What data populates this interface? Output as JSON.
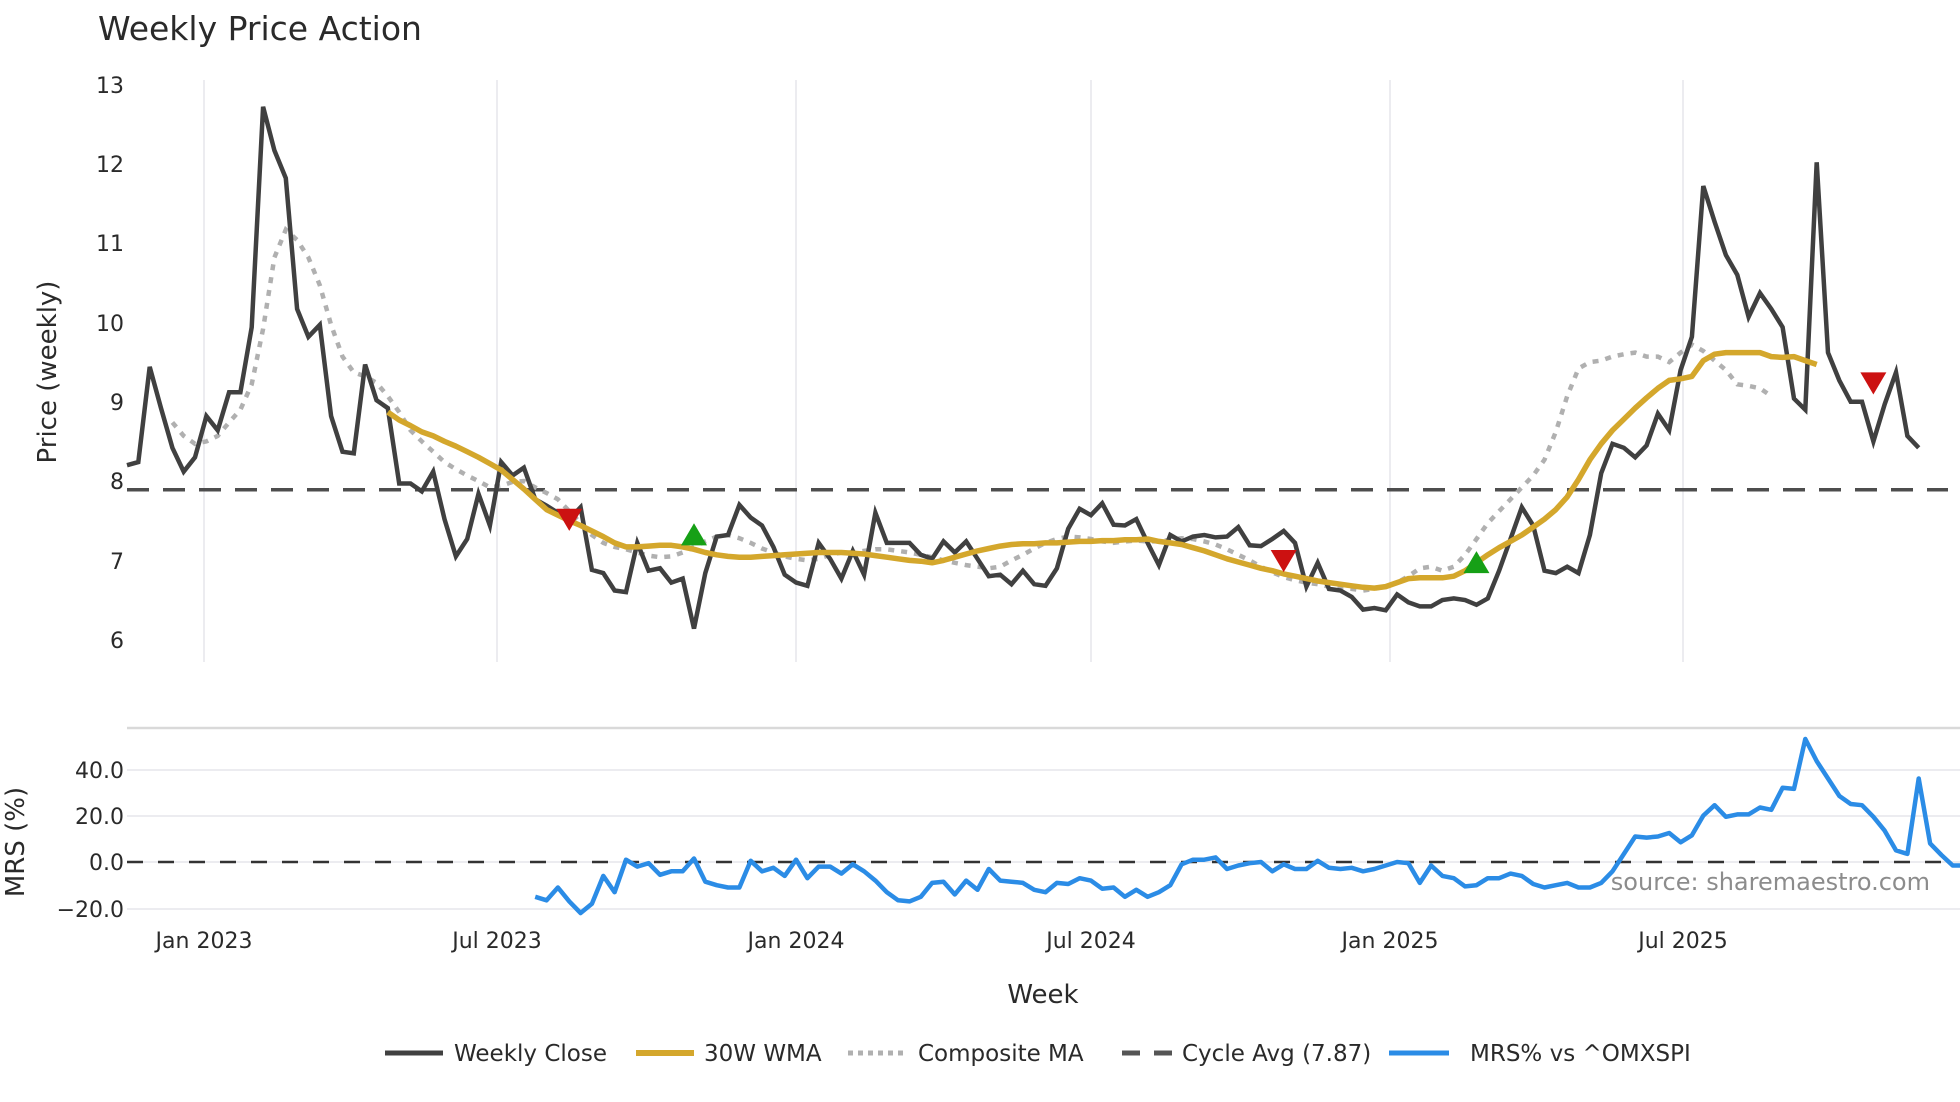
{
  "chart_data": {
    "type": "line",
    "title": "Weekly Price Action",
    "xlabel": "Week",
    "panels": [
      {
        "name": "price",
        "ylabel": "Price (weekly)",
        "ylim": [
          5.7,
          13.2
        ],
        "yticks": [
          6,
          7,
          8,
          9,
          10,
          11,
          12,
          13
        ],
        "grid": "vertical"
      },
      {
        "name": "mrs",
        "ylabel": "MRS (%)",
        "ylim": [
          -25,
          60
        ],
        "yticks": [
          "−20.0",
          "0.0",
          "20.0",
          "40.0"
        ],
        "ytick_values": [
          -20,
          0,
          20,
          40
        ],
        "grid": "horizontal"
      }
    ],
    "x_ticks": [
      "Jan 2023",
      "Jul 2023",
      "Jan 2024",
      "Jul 2024",
      "Jan 2025",
      "Jul 2025"
    ],
    "x_start": "2022-10-24",
    "x_freq": "weekly",
    "legend_position": "bottom",
    "cycle_avg": 7.87,
    "series": [
      {
        "name": "Weekly Close",
        "color": "#404040",
        "start_index": 0,
        "values": [
          8.18,
          8.22,
          9.42,
          8.9,
          8.4,
          8.1,
          8.28,
          8.8,
          8.62,
          9.1,
          9.1,
          9.92,
          12.7,
          12.15,
          11.8,
          10.15,
          9.8,
          9.95,
          8.8,
          8.35,
          8.33,
          9.45,
          9.0,
          8.9,
          7.95,
          7.95,
          7.85,
          8.1,
          7.5,
          7.03,
          7.25,
          7.82,
          7.42,
          8.22,
          8.05,
          8.15,
          7.75,
          7.67,
          7.58,
          7.5,
          7.65,
          6.86,
          6.82,
          6.6,
          6.58,
          7.2,
          6.85,
          6.88,
          6.7,
          6.75,
          6.12,
          6.82,
          7.28,
          7.3,
          7.68,
          7.52,
          7.42,
          7.15,
          6.8,
          6.7,
          6.66,
          7.2,
          7.0,
          6.75,
          7.1,
          6.8,
          7.58,
          7.2,
          7.2,
          7.2,
          7.05,
          7.0,
          7.22,
          7.08,
          7.22,
          7.0,
          6.78,
          6.8,
          6.68,
          6.85,
          6.68,
          6.66,
          6.88,
          7.38,
          7.63,
          7.55,
          7.7,
          7.43,
          7.42,
          7.5,
          7.2,
          6.92,
          7.3,
          7.22,
          7.28,
          7.3,
          7.27,
          7.28,
          7.4,
          7.17,
          7.16,
          7.25,
          7.35,
          7.2,
          6.65,
          6.95,
          6.62,
          6.6,
          6.52,
          6.36,
          6.38,
          6.35,
          6.55,
          6.45,
          6.4,
          6.4,
          6.48,
          6.5,
          6.48,
          6.42,
          6.5,
          6.85,
          7.25,
          7.65,
          7.42,
          6.85,
          6.82,
          6.9,
          6.82,
          7.3,
          8.08,
          8.45,
          8.4,
          8.28,
          8.43,
          8.83,
          8.62,
          9.38,
          9.8,
          11.7,
          11.25,
          10.83,
          10.58,
          10.05,
          10.35,
          10.15,
          9.92,
          9.02,
          8.88,
          12.0,
          9.6,
          9.25,
          8.98,
          8.98,
          8.48,
          8.95,
          9.35,
          8.55,
          8.4
        ]
      },
      {
        "name": "30W WMA",
        "color": "#D4A72C",
        "start_index": 23,
        "values": [
          8.85,
          8.75,
          8.68,
          8.6,
          8.55,
          8.48,
          8.42,
          8.35,
          8.28,
          8.2,
          8.12,
          8.0,
          7.88,
          7.75,
          7.62,
          7.55,
          7.48,
          7.42,
          7.35,
          7.28,
          7.2,
          7.15,
          7.15,
          7.16,
          7.17,
          7.17,
          7.15,
          7.12,
          7.08,
          7.05,
          7.03,
          7.02,
          7.02,
          7.03,
          7.04,
          7.05,
          7.06,
          7.07,
          7.08,
          7.08,
          7.08,
          7.07,
          7.06,
          7.04,
          7.02,
          7.0,
          6.98,
          6.97,
          6.95,
          6.98,
          7.02,
          7.06,
          7.1,
          7.13,
          7.16,
          7.18,
          7.19,
          7.19,
          7.2,
          7.2,
          7.21,
          7.22,
          7.22,
          7.23,
          7.23,
          7.24,
          7.24,
          7.25,
          7.22,
          7.2,
          7.18,
          7.14,
          7.1,
          7.05,
          7.0,
          6.96,
          6.92,
          6.88,
          6.85,
          6.81,
          6.78,
          6.75,
          6.72,
          6.7,
          6.68,
          6.66,
          6.64,
          6.63,
          6.65,
          6.7,
          6.75,
          6.76,
          6.76,
          6.76,
          6.78,
          6.85,
          6.95,
          7.05,
          7.14,
          7.22,
          7.3,
          7.4,
          7.5,
          7.62,
          7.78,
          8.0,
          8.25,
          8.45,
          8.62,
          8.76,
          8.9,
          9.03,
          9.15,
          9.25,
          9.27,
          9.3,
          9.5,
          9.58,
          9.6,
          9.6,
          9.6,
          9.6,
          9.55,
          9.54,
          9.55,
          9.5,
          9.45
        ]
      },
      {
        "name": "Composite MA",
        "color": "#b0b0b0",
        "start_index": 4,
        "values": [
          8.72,
          8.55,
          8.45,
          8.48,
          8.55,
          8.72,
          8.88,
          9.2,
          9.9,
          10.8,
          11.15,
          11.02,
          10.8,
          10.45,
          9.95,
          9.55,
          9.35,
          9.3,
          9.22,
          9.05,
          8.85,
          8.62,
          8.48,
          8.35,
          8.22,
          8.13,
          8.05,
          7.98,
          7.9,
          7.92,
          7.97,
          7.98,
          7.9,
          7.83,
          7.75,
          7.6,
          7.45,
          7.3,
          7.2,
          7.15,
          7.12,
          7.08,
          7.04,
          7.02,
          7.03,
          7.08,
          7.15,
          7.22,
          7.28,
          7.3,
          7.26,
          7.2,
          7.13,
          7.08,
          7.03,
          7.0,
          6.98,
          7.0,
          7.05,
          7.08,
          7.08,
          7.1,
          7.12,
          7.12,
          7.1,
          7.08,
          7.05,
          7.02,
          6.98,
          6.95,
          6.92,
          6.9,
          6.88,
          6.9,
          6.98,
          7.05,
          7.13,
          7.2,
          7.25,
          7.28,
          7.27,
          7.25,
          7.22,
          7.2,
          7.22,
          7.23,
          7.22,
          7.22,
          7.24,
          7.26,
          7.25,
          7.22,
          7.18,
          7.12,
          7.05,
          6.98,
          6.9,
          6.83,
          6.77,
          6.73,
          6.7,
          6.68,
          6.65,
          6.63,
          6.62,
          6.6,
          6.62,
          6.65,
          6.7,
          6.78,
          6.88,
          6.9,
          6.85,
          6.9,
          7.05,
          7.25,
          7.45,
          7.6,
          7.75,
          7.9,
          8.05,
          8.25,
          8.6,
          9.05,
          9.4,
          9.48,
          9.5,
          9.55,
          9.58,
          9.6,
          9.55,
          9.55,
          9.48,
          9.6,
          9.7,
          9.62,
          9.5,
          9.38,
          9.2,
          9.18,
          9.15,
          9.05
        ]
      },
      {
        "name": "Cycle Avg (7.87)",
        "color": "#4d4d4d",
        "style": "dashed",
        "value": 7.87
      },
      {
        "name": "MRS% vs ^OMXSPI",
        "color": "#2B8CE6",
        "panel": "mrs",
        "start_index": 36,
        "values": [
          -15,
          -16.5,
          -11,
          -17,
          -22,
          -18,
          -6,
          -13,
          1,
          -2,
          -0.5,
          -5.5,
          -4,
          -4,
          1.5,
          -8.5,
          -10,
          -11,
          -11,
          0.5,
          -4,
          -2.5,
          -6,
          1,
          -7,
          -2,
          -2,
          -5,
          -1,
          -4,
          -8,
          -13,
          -16.5,
          -17,
          -15,
          -9,
          -8.5,
          -14,
          -8,
          -12,
          -3,
          -8,
          -8.5,
          -9,
          -12,
          -13,
          -9,
          -9.5,
          -7,
          -8,
          -11.5,
          -11,
          -15,
          -12,
          -15,
          -13,
          -10,
          -1,
          1,
          1,
          2,
          -3,
          -1.5,
          -0.5,
          0,
          -4,
          -1,
          -3,
          -3,
          0.5,
          -2.5,
          -3,
          -2.5,
          -4,
          -3,
          -1.5,
          0,
          -0.5,
          -9,
          -1.5,
          -6,
          -7,
          -10.5,
          -10,
          -7,
          -7,
          -5,
          -6,
          -9.5,
          -11,
          -10,
          -9,
          -11,
          -11,
          -9,
          -4,
          3.5,
          11,
          10.5,
          11,
          12.5,
          8.5,
          11.5,
          20,
          24.5,
          19.5,
          20.5,
          20.5,
          23.5,
          22.5,
          32,
          31.5,
          53,
          43.5,
          36,
          28.5,
          25,
          24.5,
          19.5,
          13.5,
          5,
          3.5,
          36,
          8,
          3,
          -1.5,
          -1.5,
          -7,
          -3,
          0,
          -5,
          -8.5
        ]
      }
    ],
    "markers": [
      {
        "type": "sell",
        "shape": "down-triangle",
        "color": "#CC1111",
        "index": 39,
        "y": 7.5
      },
      {
        "type": "buy",
        "shape": "up-triangle",
        "color": "#16A016",
        "index": 50,
        "y": 7.3
      },
      {
        "type": "sell",
        "shape": "down-triangle",
        "color": "#CC1111",
        "index": 102,
        "y": 6.98
      },
      {
        "type": "buy",
        "shape": "up-triangle",
        "color": "#16A016",
        "index": 119,
        "y": 6.95
      },
      {
        "type": "sell",
        "shape": "down-triangle",
        "color": "#CC1111",
        "index": 154,
        "y": 9.22
      }
    ]
  },
  "labels": {
    "title": "Weekly Price Action",
    "price_ylabel": "Price (weekly)",
    "mrs_ylabel": "MRS (%)",
    "xlabel": "Week",
    "source": "source: sharemaestro.com",
    "price_ticks": [
      "13",
      "12",
      "11",
      "10",
      "9",
      "8",
      "7",
      "6"
    ],
    "mrs_ticks": [
      "40.0",
      "20.0",
      "0.0",
      "−20.0"
    ],
    "x_ticks": [
      "Jan 2023",
      "Jul 2023",
      "Jan 2024",
      "Jul 2024",
      "Jan 2025",
      "Jul 2025"
    ]
  },
  "legend": [
    {
      "label": "Weekly Close",
      "color": "#404040",
      "style": "solid"
    },
    {
      "label": "30W WMA",
      "color": "#D4A72C",
      "style": "solid"
    },
    {
      "label": "Composite MA",
      "color": "#b0b0b0",
      "style": "dotted"
    },
    {
      "label": "Cycle Avg (7.87)",
      "color": "#555555",
      "style": "dashed"
    },
    {
      "label": "MRS% vs ^OMXSPI",
      "color": "#2B8CE6",
      "style": "solid"
    }
  ]
}
